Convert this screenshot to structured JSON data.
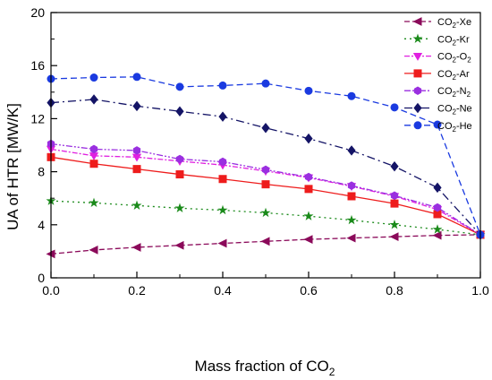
{
  "chart_data": {
    "type": "line",
    "xlabel_main": "Mass fraction of CO",
    "xlabel_sub": "2",
    "ylabel": "UA of HTR [MW/K]",
    "xlim": [
      0.0,
      1.0
    ],
    "ylim": [
      0,
      20
    ],
    "x_ticks": [
      "0.0",
      "0.2",
      "0.4",
      "0.6",
      "0.8",
      "1.0"
    ],
    "y_ticks": [
      "0",
      "4",
      "8",
      "12",
      "16",
      "20"
    ],
    "legend_position": "top-right",
    "grid": false,
    "x": [
      0.0,
      0.1,
      0.2,
      0.3,
      0.4,
      0.5,
      0.6,
      0.7,
      0.8,
      0.9,
      1.0
    ],
    "series": [
      {
        "name_main": "CO",
        "name_sub": "2",
        "name_tail": "-Xe",
        "name_tail_sub": "",
        "color": "#8b0a5a",
        "marker": "triangle-left",
        "dash": "6,3",
        "values": [
          1.8,
          2.1,
          2.3,
          2.45,
          2.6,
          2.75,
          2.9,
          3.0,
          3.1,
          3.2,
          3.25
        ]
      },
      {
        "name_main": "CO",
        "name_sub": "2",
        "name_tail": "-Kr",
        "name_tail_sub": "",
        "color": "#1a8a1a",
        "marker": "star",
        "dash": "2,4",
        "values": [
          5.8,
          5.65,
          5.45,
          5.25,
          5.1,
          4.9,
          4.65,
          4.35,
          4.0,
          3.65,
          3.25
        ]
      },
      {
        "name_main": "CO",
        "name_sub": "2",
        "name_tail": "-O",
        "name_tail_sub": "2",
        "color": "#e020e0",
        "marker": "triangle-down",
        "dash": "6,2,2,2",
        "values": [
          9.7,
          9.2,
          9.1,
          8.8,
          8.5,
          8.05,
          7.55,
          6.9,
          6.15,
          5.15,
          3.25
        ]
      },
      {
        "name_main": "CO",
        "name_sub": "2",
        "name_tail": "-Ar",
        "name_tail_sub": "",
        "color": "#ee1c1c",
        "marker": "square",
        "dash": "",
        "values": [
          9.1,
          8.6,
          8.2,
          7.8,
          7.45,
          7.05,
          6.7,
          6.15,
          5.6,
          4.8,
          3.25
        ]
      },
      {
        "name_main": "CO",
        "name_sub": "2",
        "name_tail": "-N",
        "name_tail_sub": "2",
        "color": "#9a2fe0",
        "marker": "hexagon",
        "dash": "7,2,2,2,2,2",
        "values": [
          10.1,
          9.7,
          9.6,
          8.95,
          8.75,
          8.15,
          7.6,
          6.95,
          6.2,
          5.3,
          3.25
        ]
      },
      {
        "name_main": "CO",
        "name_sub": "2",
        "name_tail": "-Ne",
        "name_tail_sub": "",
        "color": "#141466",
        "marker": "diamond",
        "dash": "9,4,2,4",
        "values": [
          13.2,
          13.45,
          12.95,
          12.55,
          12.15,
          11.3,
          10.5,
          9.6,
          8.4,
          6.8,
          3.25
        ]
      },
      {
        "name_main": "CO",
        "name_sub": "2",
        "name_tail": "-He",
        "name_tail_sub": "",
        "color": "#1a3ae0",
        "marker": "circle",
        "dash": "7,4",
        "values": [
          15.0,
          15.1,
          15.15,
          14.4,
          14.5,
          14.65,
          14.1,
          13.7,
          12.85,
          11.55,
          3.25
        ]
      }
    ]
  }
}
